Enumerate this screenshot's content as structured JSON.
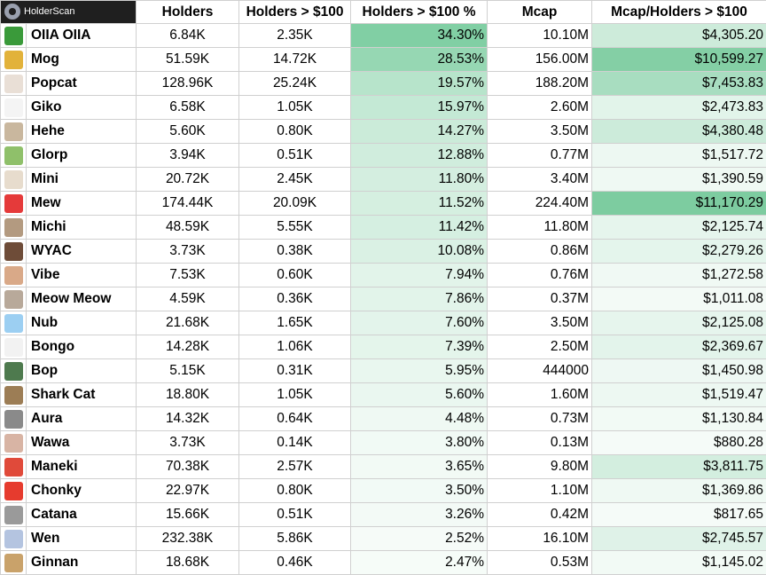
{
  "header": {
    "logo_text": "HolderScan",
    "columns": [
      "Holders",
      "Holders > $100",
      "Holders > $100 %",
      "Mcap",
      "Mcap/Holders > $100"
    ]
  },
  "colors": {
    "pct_heat": [
      "#ffffff",
      "#81cfa4"
    ],
    "ratio_heat": [
      "#ffffff",
      "#7dcca0"
    ]
  },
  "rows": [
    {
      "name": "OIIA OIIA",
      "holders": "6.84K",
      "holders_100": "2.35K",
      "pct": "34.30%",
      "pct_value": 34.3,
      "mcap": "10.10M",
      "ratio": "$4,305.20",
      "ratio_value": 4305.2,
      "icon": "oiia-cat-icon",
      "icon_color": "#3a9a3a"
    },
    {
      "name": "Mog",
      "holders": "51.59K",
      "holders_100": "14.72K",
      "pct": "28.53%",
      "pct_value": 28.53,
      "mcap": "156.00M",
      "ratio": "$10,599.27",
      "ratio_value": 10599.27,
      "icon": "mog-cat-icon",
      "icon_color": "#e2b23a"
    },
    {
      "name": "Popcat",
      "holders": "128.96K",
      "holders_100": "25.24K",
      "pct": "19.57%",
      "pct_value": 19.57,
      "mcap": "188.20M",
      "ratio": "$7,453.83",
      "ratio_value": 7453.83,
      "icon": "popcat-icon",
      "icon_color": "#e9dfd6"
    },
    {
      "name": "Giko",
      "holders": "6.58K",
      "holders_100": "1.05K",
      "pct": "15.97%",
      "pct_value": 15.97,
      "mcap": "2.60M",
      "ratio": "$2,473.83",
      "ratio_value": 2473.83,
      "icon": "giko-icon",
      "icon_color": "#f4f4f4"
    },
    {
      "name": "Hehe",
      "holders": "5.60K",
      "holders_100": "0.80K",
      "pct": "14.27%",
      "pct_value": 14.27,
      "mcap": "3.50M",
      "ratio": "$4,380.48",
      "ratio_value": 4380.48,
      "icon": "hehe-cat-icon",
      "icon_color": "#c9b79e"
    },
    {
      "name": "Glorp",
      "holders": "3.94K",
      "holders_100": "0.51K",
      "pct": "12.88%",
      "pct_value": 12.88,
      "mcap": "0.77M",
      "ratio": "$1,517.72",
      "ratio_value": 1517.72,
      "icon": "glorp-alien-icon",
      "icon_color": "#8fc06a"
    },
    {
      "name": "Mini",
      "holders": "20.72K",
      "holders_100": "2.45K",
      "pct": "11.80%",
      "pct_value": 11.8,
      "mcap": "3.40M",
      "ratio": "$1,390.59",
      "ratio_value": 1390.59,
      "icon": "mini-cat-icon",
      "icon_color": "#e7dccd"
    },
    {
      "name": "Mew",
      "holders": "174.44K",
      "holders_100": "20.09K",
      "pct": "11.52%",
      "pct_value": 11.52,
      "mcap": "224.40M",
      "ratio": "$11,170.29",
      "ratio_value": 11170.29,
      "icon": "mew-cat-icon",
      "icon_color": "#e53a3a"
    },
    {
      "name": "Michi",
      "holders": "48.59K",
      "holders_100": "5.55K",
      "pct": "11.42%",
      "pct_value": 11.42,
      "mcap": "11.80M",
      "ratio": "$2,125.74",
      "ratio_value": 2125.74,
      "icon": "michi-cat-icon",
      "icon_color": "#b39a80"
    },
    {
      "name": "WYAC",
      "holders": "3.73K",
      "holders_100": "0.38K",
      "pct": "10.08%",
      "pct_value": 10.08,
      "mcap": "0.86M",
      "ratio": "$2,279.26",
      "ratio_value": 2279.26,
      "icon": "wyac-cat-icon",
      "icon_color": "#6e4c38"
    },
    {
      "name": "Vibe",
      "holders": "7.53K",
      "holders_100": "0.60K",
      "pct": "7.94%",
      "pct_value": 7.94,
      "mcap": "0.76M",
      "ratio": "$1,272.58",
      "ratio_value": 1272.58,
      "icon": "vibe-cat-icon",
      "icon_color": "#d9a988"
    },
    {
      "name": "Meow Meow",
      "holders": "4.59K",
      "holders_100": "0.36K",
      "pct": "7.86%",
      "pct_value": 7.86,
      "mcap": "0.37M",
      "ratio": "$1,011.08",
      "ratio_value": 1011.08,
      "icon": "meow-meow-icon",
      "icon_color": "#b8a99a"
    },
    {
      "name": "Nub",
      "holders": "21.68K",
      "holders_100": "1.65K",
      "pct": "7.60%",
      "pct_value": 7.6,
      "mcap": "3.50M",
      "ratio": "$2,125.08",
      "ratio_value": 2125.08,
      "icon": "nub-cat-icon",
      "icon_color": "#9ccff2"
    },
    {
      "name": "Bongo",
      "holders": "14.28K",
      "holders_100": "1.06K",
      "pct": "7.39%",
      "pct_value": 7.39,
      "mcap": "2.50M",
      "ratio": "$2,369.67",
      "ratio_value": 2369.67,
      "icon": "bongo-cat-icon",
      "icon_color": "#f2f2f2"
    },
    {
      "name": "Bop",
      "holders": "5.15K",
      "holders_100": "0.31K",
      "pct": "5.95%",
      "pct_value": 5.95,
      "mcap": "444000",
      "ratio": "$1,450.98",
      "ratio_value": 1450.98,
      "icon": "bop-icon",
      "icon_color": "#4e7a4e"
    },
    {
      "name": "Shark Cat",
      "holders": "18.80K",
      "holders_100": "1.05K",
      "pct": "5.60%",
      "pct_value": 5.6,
      "mcap": "1.60M",
      "ratio": "$1,519.47",
      "ratio_value": 1519.47,
      "icon": "shark-cat-icon",
      "icon_color": "#9c7d55"
    },
    {
      "name": "Aura",
      "holders": "14.32K",
      "holders_100": "0.64K",
      "pct": "4.48%",
      "pct_value": 4.48,
      "mcap": "0.73M",
      "ratio": "$1,130.84",
      "ratio_value": 1130.84,
      "icon": "aura-cat-icon",
      "icon_color": "#8a8a8a"
    },
    {
      "name": "Wawa",
      "holders": "3.73K",
      "holders_100": "0.14K",
      "pct": "3.80%",
      "pct_value": 3.8,
      "mcap": "0.13M",
      "ratio": "$880.28",
      "ratio_value": 880.28,
      "icon": "wawa-cat-icon",
      "icon_color": "#d8b4a4"
    },
    {
      "name": "Maneki",
      "holders": "70.38K",
      "holders_100": "2.57K",
      "pct": "3.65%",
      "pct_value": 3.65,
      "mcap": "9.80M",
      "ratio": "$3,811.75",
      "ratio_value": 3811.75,
      "icon": "maneki-cat-icon",
      "icon_color": "#e04a3a"
    },
    {
      "name": "Chonky",
      "holders": "22.97K",
      "holders_100": "0.80K",
      "pct": "3.50%",
      "pct_value": 3.5,
      "mcap": "1.10M",
      "ratio": "$1,369.86",
      "ratio_value": 1369.86,
      "icon": "chonky-cat-icon",
      "icon_color": "#e63b2e"
    },
    {
      "name": "Catana",
      "holders": "15.66K",
      "holders_100": "0.51K",
      "pct": "3.26%",
      "pct_value": 3.26,
      "mcap": "0.42M",
      "ratio": "$817.65",
      "ratio_value": 817.65,
      "icon": "catana-cat-icon",
      "icon_color": "#9a9a9a"
    },
    {
      "name": "Wen",
      "holders": "232.38K",
      "holders_100": "5.86K",
      "pct": "2.52%",
      "pct_value": 2.52,
      "mcap": "16.10M",
      "ratio": "$2,745.57",
      "ratio_value": 2745.57,
      "icon": "wen-cat-icon",
      "icon_color": "#b4c4e0"
    },
    {
      "name": "Ginnan",
      "holders": "18.68K",
      "holders_100": "0.46K",
      "pct": "2.47%",
      "pct_value": 2.47,
      "mcap": "0.53M",
      "ratio": "$1,145.02",
      "ratio_value": 1145.02,
      "icon": "ginnan-dog-icon",
      "icon_color": "#c9a26a"
    }
  ]
}
